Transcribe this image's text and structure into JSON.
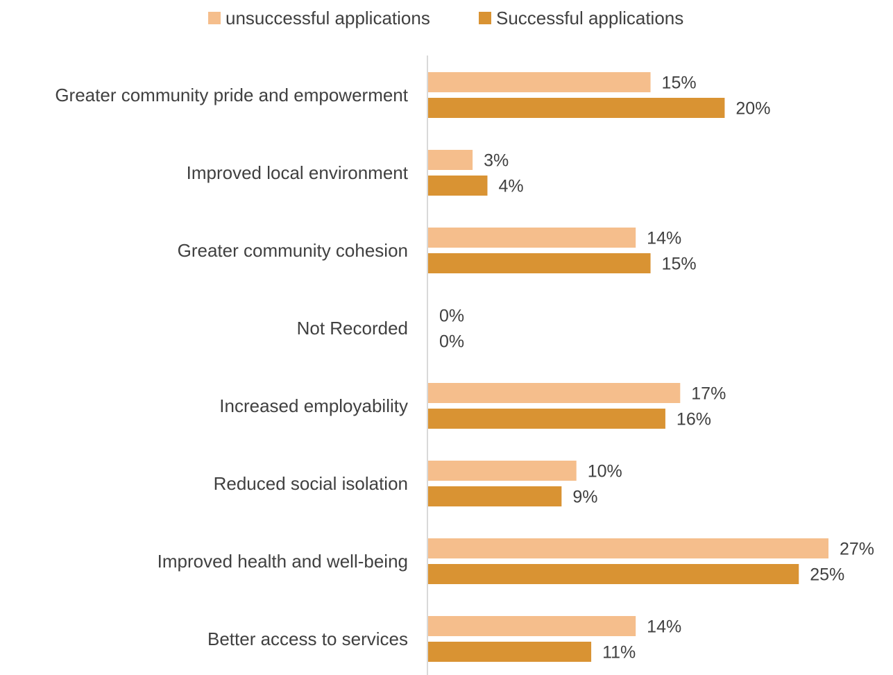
{
  "chart_data": {
    "type": "bar",
    "orientation": "horizontal",
    "title": "",
    "xlabel": "",
    "ylabel": "",
    "categories": [
      "Greater community pride and empowerment",
      "Improved local environment",
      "Greater community cohesion",
      "Not Recorded",
      "Increased employability",
      "Reduced social isolation",
      "Improved health and well-being",
      "Better access to services"
    ],
    "series": [
      {
        "name": "unsuccessful applications",
        "color": "#F5BE8C",
        "values": [
          15,
          3,
          14,
          0,
          17,
          10,
          27,
          14
        ],
        "labels": [
          "15%",
          "3%",
          "14%",
          "0%",
          "17%",
          "10%",
          "27%",
          "14%"
        ]
      },
      {
        "name": "Successful applications",
        "color": "#D99333",
        "values": [
          20,
          4,
          15,
          0,
          16,
          9,
          25,
          11
        ],
        "labels": [
          "20%",
          "4%",
          "15%",
          "0%",
          "16%",
          "9%",
          "25%",
          "11%"
        ]
      }
    ],
    "value_unit": "%",
    "xlim": [
      0,
      27
    ],
    "grid": false,
    "legend_position": "top-center",
    "axis_color": "#D9D9D9"
  }
}
